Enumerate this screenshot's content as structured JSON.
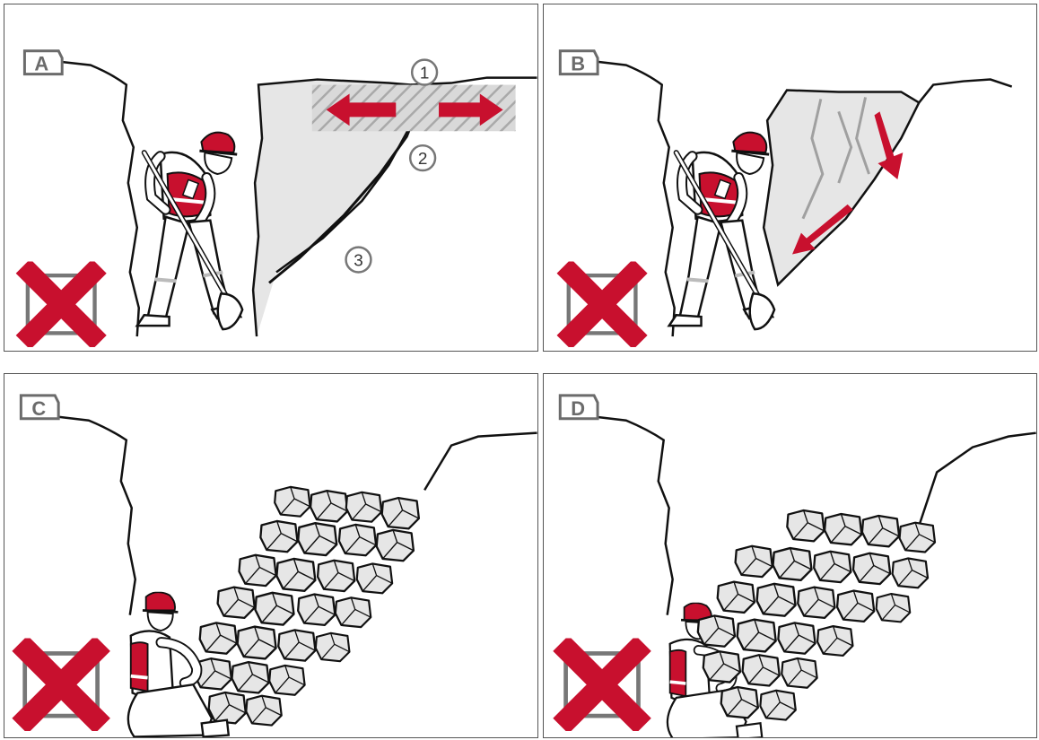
{
  "panels": [
    {
      "id": "A",
      "label": "A",
      "status": "incorrect",
      "callouts": [
        "1",
        "2",
        "3"
      ]
    },
    {
      "id": "B",
      "label": "B",
      "status": "incorrect"
    },
    {
      "id": "C",
      "label": "C",
      "status": "incorrect"
    },
    {
      "id": "D",
      "label": "D",
      "status": "incorrect"
    }
  ],
  "icons": {
    "status_mark": "red-x-icon",
    "arrows": "red-arrow-icon",
    "worker": "construction-worker-icon",
    "shovel": "shovel-icon",
    "rocks": "rubble-icon"
  },
  "colors": {
    "accent_red": "#c8102e",
    "outline": "#111111",
    "rock_fill": "#e6e6e6",
    "tag_gray": "#6b6b6b",
    "hatch_gray": "#b5b5b5"
  }
}
